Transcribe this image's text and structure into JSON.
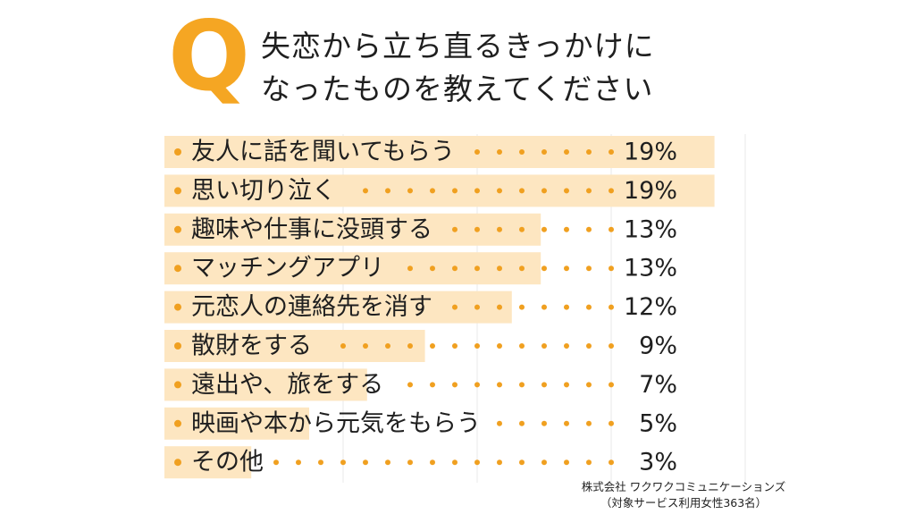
{
  "header": {
    "q_mark": "Q",
    "question_line1": "失恋から立ち直るきっかけに",
    "question_line2": "なったものを教えてください"
  },
  "chart_data": {
    "type": "bar",
    "orientation": "horizontal",
    "categories": [
      "友人に話を聞いてもらう",
      "思い切り泣く",
      "趣味や仕事に没頭する",
      "マッチングアプリ",
      "元恋人の連絡先を消す",
      "散財をする",
      "遠出や、旅をする",
      "映画や本から元気をもらう",
      "その他"
    ],
    "values": [
      19,
      19,
      13,
      13,
      12,
      9,
      7,
      5,
      3
    ],
    "value_labels": [
      "19%",
      "19%",
      "13%",
      "13%",
      "12%",
      "9%",
      "7%",
      "5%",
      "3%"
    ],
    "unit": "%",
    "xlim": [
      0,
      20
    ],
    "grid": true
  },
  "colors": {
    "accent": "#f5a623",
    "bar": "#fde6c1",
    "bullet": "#f0a020",
    "dot": "#f0a020",
    "grid": "#e8e8e8"
  },
  "footer": {
    "source_line1": "株式会社 ワクワクコミュニケーションズ",
    "source_line2": "（対象サービス利用女性363名）"
  }
}
